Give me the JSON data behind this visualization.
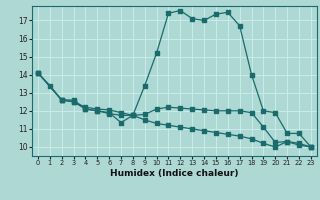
{
  "background_color": "#aed8d4",
  "grid_color": "#c8ecea",
  "line_color": "#1a6b6b",
  "xlabel": "Humidex (Indice chaleur)",
  "xlim": [
    -0.5,
    23.5
  ],
  "ylim": [
    9.5,
    17.8
  ],
  "yticks": [
    10,
    11,
    12,
    13,
    14,
    15,
    16,
    17
  ],
  "xticks": [
    0,
    1,
    2,
    3,
    4,
    5,
    6,
    7,
    8,
    9,
    10,
    11,
    12,
    13,
    14,
    15,
    16,
    17,
    18,
    19,
    20,
    21,
    22,
    23
  ],
  "line_big": {
    "x": [
      0,
      1,
      2,
      3,
      4,
      5,
      6,
      7,
      8,
      9,
      10,
      11,
      12,
      13,
      14,
      15,
      16,
      17,
      18,
      19,
      20,
      21,
      22,
      23
    ],
    "y": [
      14.1,
      13.4,
      12.6,
      12.6,
      12.1,
      12.0,
      11.9,
      11.35,
      11.75,
      13.4,
      15.2,
      17.4,
      17.55,
      17.1,
      17.0,
      17.35,
      17.45,
      16.7,
      14.0,
      12.0,
      11.9,
      10.75,
      10.75,
      10.0
    ]
  },
  "line_mid": {
    "x": [
      0,
      2,
      3,
      4,
      5,
      6,
      7,
      8,
      9,
      10,
      11,
      12,
      13,
      14,
      15,
      16,
      17,
      18,
      19,
      20,
      21,
      22,
      23
    ],
    "y": [
      14.1,
      12.6,
      12.5,
      12.2,
      12.1,
      12.05,
      11.9,
      11.75,
      11.8,
      12.1,
      12.2,
      12.15,
      12.1,
      12.05,
      12.0,
      12.0,
      12.0,
      11.9,
      11.1,
      10.25,
      10.3,
      10.2,
      10.0
    ]
  },
  "line_low": {
    "x": [
      0,
      2,
      3,
      4,
      5,
      6,
      7,
      8,
      9,
      10,
      11,
      12,
      13,
      14,
      15,
      16,
      17,
      18,
      19,
      20,
      21,
      22,
      23
    ],
    "y": [
      14.1,
      12.6,
      12.5,
      12.1,
      12.0,
      11.85,
      11.75,
      11.75,
      11.5,
      11.3,
      11.2,
      11.1,
      11.0,
      10.9,
      10.8,
      10.7,
      10.6,
      10.45,
      10.2,
      10.0,
      10.3,
      10.1,
      10.0
    ]
  }
}
